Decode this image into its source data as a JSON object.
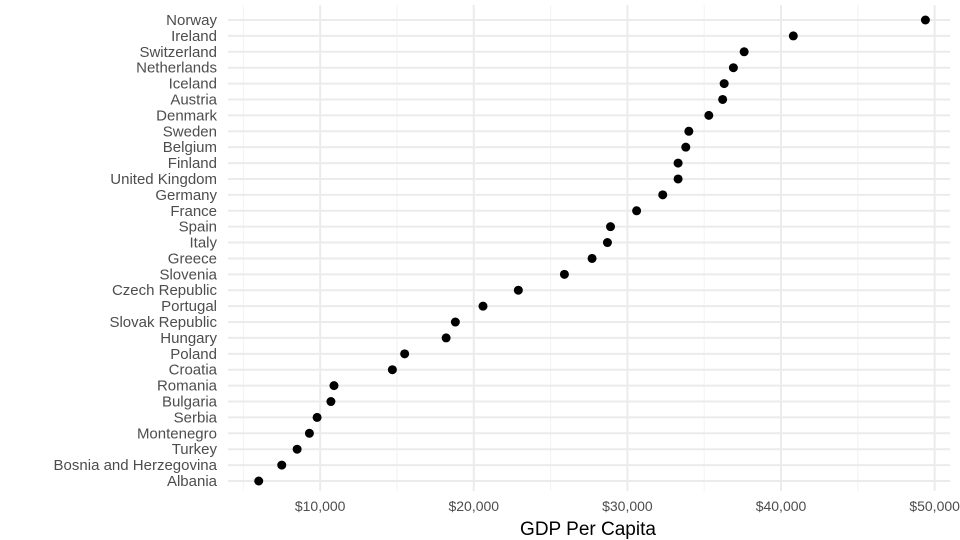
{
  "chart_data": {
    "type": "scatter",
    "title": "",
    "xlabel": "GDP Per Capita",
    "ylabel": "",
    "xlim": [
      4000,
      51000
    ],
    "x_ticks": [
      10000,
      20000,
      30000,
      40000,
      50000
    ],
    "x_tick_labels": [
      "$10,000",
      "$20,000",
      "$30,000",
      "$40,000",
      "$50,000"
    ],
    "grid": true,
    "legend": "none",
    "colors": {
      "point": "#000000",
      "grid_major": "#ebebeb",
      "grid_minor": "#f2f2f2",
      "text": "#4d4d4d"
    },
    "points": [
      {
        "country": "Norway",
        "gdp": 49400
      },
      {
        "country": "Ireland",
        "gdp": 40800
      },
      {
        "country": "Switzerland",
        "gdp": 37600
      },
      {
        "country": "Netherlands",
        "gdp": 36900
      },
      {
        "country": "Iceland",
        "gdp": 36300
      },
      {
        "country": "Austria",
        "gdp": 36200
      },
      {
        "country": "Denmark",
        "gdp": 35300
      },
      {
        "country": "Sweden",
        "gdp": 34000
      },
      {
        "country": "Belgium",
        "gdp": 33800
      },
      {
        "country": "Finland",
        "gdp": 33300
      },
      {
        "country": "United Kingdom",
        "gdp": 33300
      },
      {
        "country": "Germany",
        "gdp": 32300
      },
      {
        "country": "France",
        "gdp": 30600
      },
      {
        "country": "Spain",
        "gdp": 28900
      },
      {
        "country": "Italy",
        "gdp": 28700
      },
      {
        "country": "Greece",
        "gdp": 27700
      },
      {
        "country": "Slovenia",
        "gdp": 25900
      },
      {
        "country": "Czech Republic",
        "gdp": 22900
      },
      {
        "country": "Portugal",
        "gdp": 20600
      },
      {
        "country": "Slovak Republic",
        "gdp": 18800
      },
      {
        "country": "Hungary",
        "gdp": 18200
      },
      {
        "country": "Poland",
        "gdp": 15500
      },
      {
        "country": "Croatia",
        "gdp": 14700
      },
      {
        "country": "Romania",
        "gdp": 10900
      },
      {
        "country": "Bulgaria",
        "gdp": 10700
      },
      {
        "country": "Serbia",
        "gdp": 9800
      },
      {
        "country": "Montenegro",
        "gdp": 9300
      },
      {
        "country": "Turkey",
        "gdp": 8500
      },
      {
        "country": "Bosnia and Herzegovina",
        "gdp": 7500
      },
      {
        "country": "Albania",
        "gdp": 6000
      }
    ]
  }
}
